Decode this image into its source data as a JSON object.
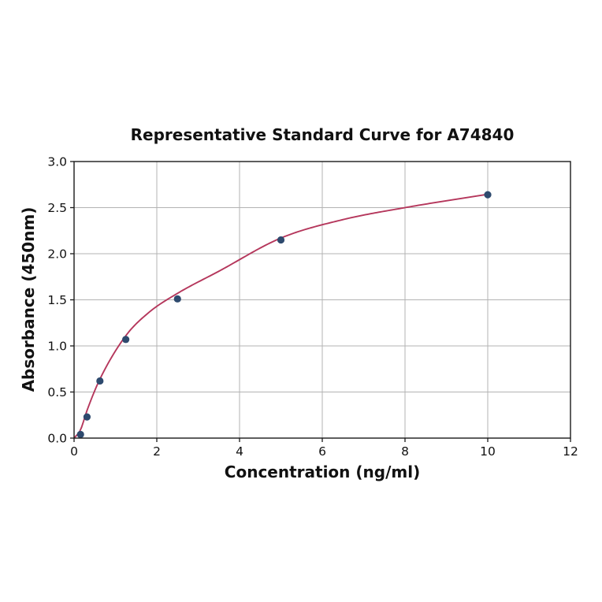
{
  "chart_data": {
    "type": "scatter",
    "title": "Representative Standard Curve for A74840",
    "xlabel": "Concentration (ng/ml)",
    "ylabel": "Absorbance (450nm)",
    "xlim": [
      0,
      12
    ],
    "ylim": [
      0,
      3.0
    ],
    "x_ticks": [
      0,
      2,
      4,
      6,
      8,
      10,
      12
    ],
    "x_tick_labels": [
      "0",
      "2",
      "4",
      "6",
      "8",
      "10",
      "12"
    ],
    "y_ticks": [
      0,
      0.5,
      1.0,
      1.5,
      2.0,
      2.5,
      3.0
    ],
    "y_tick_labels": [
      "0.0",
      "0.5",
      "1.0",
      "1.5",
      "2.0",
      "2.5",
      "3.0"
    ],
    "grid": true,
    "legend": "none",
    "series": [
      {
        "name": "standard-points",
        "type": "scatter",
        "marker": "circle",
        "color": "#2e4a6e",
        "points": [
          [
            0.156,
            0.04
          ],
          [
            0.313,
            0.23
          ],
          [
            0.625,
            0.62
          ],
          [
            1.25,
            1.07
          ],
          [
            2.5,
            1.51
          ],
          [
            5,
            2.15
          ],
          [
            10,
            2.64
          ]
        ]
      },
      {
        "name": "fitted-curve",
        "type": "line",
        "color": "#b5375c",
        "points": [
          [
            0,
            0.0
          ],
          [
            0.156,
            0.09
          ],
          [
            0.313,
            0.3
          ],
          [
            0.625,
            0.64
          ],
          [
            1.25,
            1.11
          ],
          [
            1.8,
            1.36
          ],
          [
            2.5,
            1.57
          ],
          [
            3.5,
            1.81
          ],
          [
            5,
            2.17
          ],
          [
            6.5,
            2.37
          ],
          [
            8,
            2.5
          ],
          [
            10,
            2.645
          ]
        ]
      }
    ],
    "colors": {
      "background": "#ffffff",
      "grid": "#b3b3b3",
      "axis": "#1a1a1a",
      "tick_label": "#111111",
      "line": "#b5375c",
      "marker": "#2e4a6e"
    }
  }
}
